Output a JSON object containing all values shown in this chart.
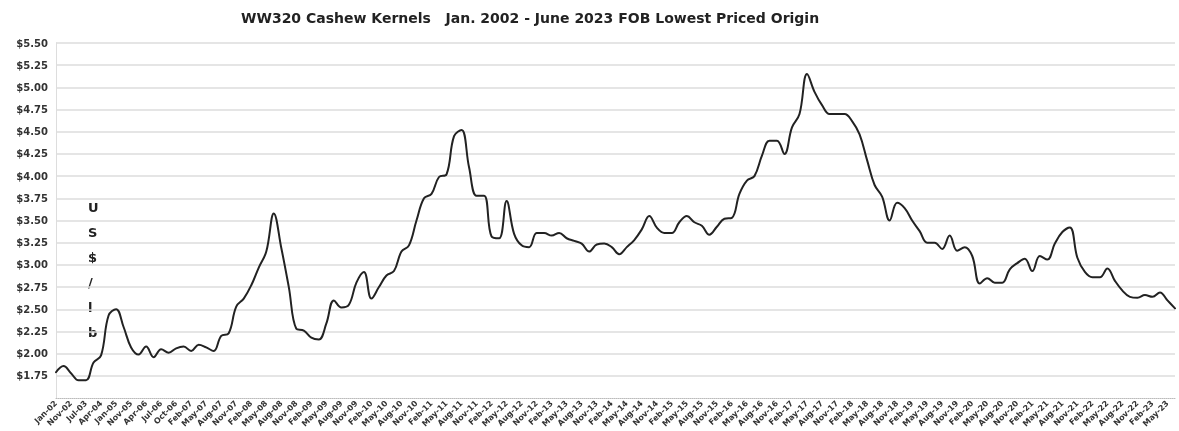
{
  "chart_data": {
    "type": "line",
    "title": "WW320 Cashew Kernels   Jan. 2002 - June 2023 FOB Lowest Priced Origin",
    "ylabel": "US$/lb",
    "categories": [
      "Jan-02",
      null,
      "Nov-02",
      null,
      "Jul-03",
      null,
      "Apr-04",
      null,
      "Jan-05",
      null,
      "Nov-05",
      null,
      "Apr-06",
      null,
      "Jul-06",
      null,
      "Oct-06",
      null,
      "Feb-07",
      null,
      "May-07",
      null,
      "Aug-07",
      null,
      "Nov-07",
      null,
      "Feb-08",
      null,
      "May-08",
      null,
      "Aug-08",
      null,
      "Nov-08",
      null,
      "Feb-09",
      null,
      "May-09",
      null,
      "Aug-09",
      null,
      "Nov-09",
      null,
      "Feb-10",
      null,
      "May-10",
      null,
      "Aug-10",
      null,
      "Nov-10",
      null,
      "Feb-11",
      null,
      "May-11",
      null,
      "Aug-11",
      null,
      "Nov-11",
      null,
      "Feb-12",
      null,
      "May-12",
      null,
      "Aug-12",
      null,
      "Nov-12",
      null,
      "Feb-13",
      null,
      "May-13",
      null,
      "Aug-13",
      null,
      "Nov-13",
      null,
      "Feb-14",
      null,
      "May-14",
      null,
      "Aug-14",
      null,
      "Nov-14",
      null,
      "Feb-15",
      null,
      "May-15",
      null,
      "Aug-15",
      null,
      "Nov-15",
      null,
      "Feb-16",
      null,
      "May-16",
      null,
      "Aug-16",
      null,
      "Nov-16",
      null,
      "Feb-17",
      null,
      "May-17",
      null,
      "Aug-17",
      null,
      "Nov-17",
      null,
      "Feb-18",
      null,
      "May-18",
      null,
      "Aug-18",
      null,
      "Nov-18",
      null,
      "Feb-19",
      null,
      "May-19",
      null,
      "Aug-19",
      null,
      "Nov-19",
      null,
      "Feb-20",
      null,
      "May-20",
      null,
      "Aug-20",
      null,
      "Nov-20",
      null,
      "Feb-21",
      null,
      "May-21",
      null,
      "Aug-21",
      null,
      "Nov-21",
      null,
      "Feb-22",
      null,
      "May-22",
      null,
      "Aug-22",
      null,
      "Nov-22",
      null,
      "Feb-23",
      null,
      "May-23",
      null
    ],
    "values": [
      1.79,
      1.86,
      1.78,
      1.7,
      1.7,
      1.9,
      1.98,
      2.43,
      2.5,
      2.3,
      2.07,
      1.99,
      2.08,
      1.96,
      2.05,
      2.01,
      2.06,
      2.08,
      2.03,
      2.1,
      2.07,
      2.03,
      2.2,
      2.23,
      2.53,
      2.62,
      2.77,
      2.97,
      3.15,
      3.58,
      3.19,
      2.75,
      2.28,
      2.26,
      2.18,
      2.16,
      2.34,
      2.6,
      2.52,
      2.55,
      2.8,
      2.92,
      2.62,
      2.75,
      2.88,
      2.93,
      3.15,
      3.22,
      3.5,
      3.75,
      3.8,
      3.99,
      4.02,
      4.45,
      4.52,
      4.1,
      3.78,
      3.78,
      3.32,
      3.3,
      3.72,
      3.35,
      3.22,
      3.2,
      3.36,
      3.36,
      3.33,
      3.36,
      3.3,
      3.27,
      3.24,
      3.15,
      3.23,
      3.24,
      3.2,
      3.12,
      3.2,
      3.28,
      3.4,
      3.55,
      3.42,
      3.36,
      3.36,
      3.48,
      3.55,
      3.48,
      3.44,
      3.34,
      3.43,
      3.52,
      3.53,
      3.8,
      3.95,
      4.0,
      4.23,
      4.4,
      4.4,
      4.25,
      4.55,
      4.7,
      5.15,
      4.95,
      4.8,
      4.7,
      4.7,
      4.7,
      4.62,
      4.47,
      4.18,
      3.9,
      3.77,
      3.5,
      3.7,
      3.64,
      3.5,
      3.38,
      3.25,
      3.25,
      3.18,
      3.33,
      3.16,
      3.2,
      3.1,
      2.79,
      2.85,
      2.8,
      2.8,
      2.95,
      3.02,
      3.07,
      2.93,
      3.1,
      3.06,
      3.24,
      3.37,
      3.42,
      3.08,
      2.92,
      2.86,
      2.86,
      2.96,
      2.82,
      2.71,
      2.64,
      2.63,
      2.66,
      2.64,
      2.69,
      2.6,
      2.51
    ],
    "color": "#222222",
    "ylim": [
      1.5,
      5.5
    ],
    "yticks": [
      {
        "value": 1.75,
        "label": "$1.75"
      },
      {
        "value": 2,
        "label": "$2.00"
      },
      {
        "value": 2.25,
        "label": "$2.25"
      },
      {
        "value": 2.5,
        "label": "$2.50"
      },
      {
        "value": 2.75,
        "label": "$2.75"
      },
      {
        "value": 3,
        "label": "$3.00"
      },
      {
        "value": 3.25,
        "label": "$3.25"
      },
      {
        "value": 3.5,
        "label": "$3.50"
      },
      {
        "value": 3.75,
        "label": "$3.75"
      },
      {
        "value": 4,
        "label": "$4.00"
      },
      {
        "value": 4.25,
        "label": "$4.25"
      },
      {
        "value": 4.5,
        "label": "$4.50"
      },
      {
        "value": 4.75,
        "label": "$4.75"
      },
      {
        "value": 5,
        "label": "$5.00"
      },
      {
        "value": 5.25,
        "label": "$5.25"
      },
      {
        "value": 5.5,
        "label": "$5.50"
      }
    ],
    "grid": "y",
    "marker": "none",
    "line_style": "solid"
  }
}
